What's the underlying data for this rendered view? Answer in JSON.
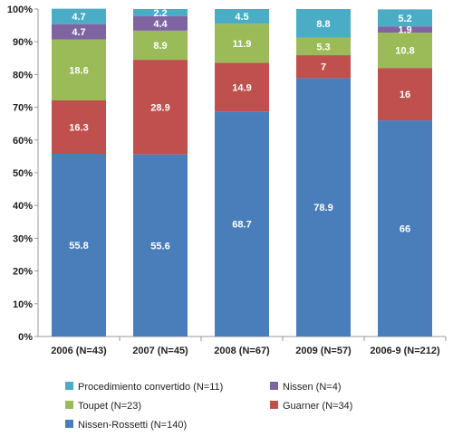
{
  "chart_data": {
    "type": "bar",
    "stacked": true,
    "percent": true,
    "categories": [
      "2006 (N=43)",
      "2007 (N=45)",
      "2008 (N=67)",
      "2009 (N=57)",
      "2006-9 (N=212)"
    ],
    "series": [
      {
        "name": "Nissen-Rossetti (N=140)",
        "color": "#4a7ebb",
        "values": [
          55.8,
          55.6,
          68.7,
          78.9,
          66
        ]
      },
      {
        "name": "Guarner (N=34)",
        "color": "#c0504d",
        "values": [
          16.3,
          28.9,
          14.9,
          7,
          16
        ]
      },
      {
        "name": "Toupet (N=23)",
        "color": "#9bbb59",
        "values": [
          18.6,
          8.9,
          11.9,
          5.3,
          10.8
        ]
      },
      {
        "name": "Nissen (N=4)",
        "color": "#8064a2",
        "values": [
          4.7,
          4.4,
          null,
          null,
          1.9
        ]
      },
      {
        "name": "Procedimiento convertido (N=11)",
        "color": "#4bacc6",
        "values": [
          4.7,
          2.2,
          4.5,
          8.8,
          5.2
        ]
      }
    ],
    "yticks": [
      "0%",
      "10%",
      "20%",
      "30%",
      "40%",
      "50%",
      "60%",
      "70%",
      "80%",
      "90%",
      "100%"
    ],
    "ylim": [
      0,
      100
    ],
    "legend_position": "bottom",
    "legend_order": [
      4,
      3,
      2,
      1,
      0
    ],
    "grid": false
  }
}
